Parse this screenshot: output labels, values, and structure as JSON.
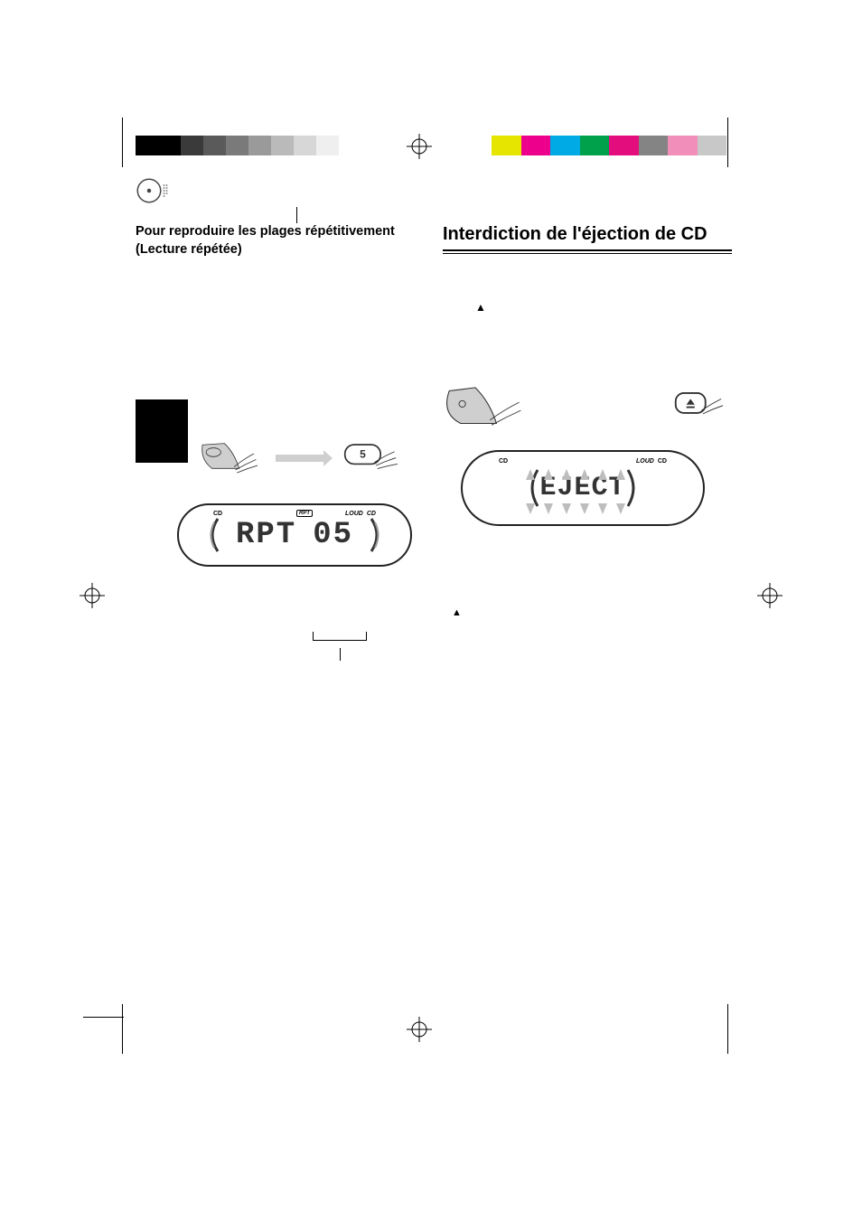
{
  "print_bars": {
    "grayscale": [
      "#000000",
      "#000000",
      "#3a3a3a",
      "#5a5a5a",
      "#7a7a7a",
      "#9a9a9a",
      "#bababa",
      "#d7d7d7",
      "#efefef",
      "#ffffff"
    ],
    "color": [
      "#e5e500",
      "#ec008c",
      "#00aae4",
      "#00a14b",
      "#e40d7e",
      "#848484",
      "#f18fba",
      "#c8c8c8"
    ]
  },
  "left": {
    "heading": "Pour reproduire les plages répétitivement (Lecture répétée)",
    "button_number": "5",
    "lcd": {
      "top_left": "CD",
      "top_center": "RPT",
      "top_right_1": "LOUD",
      "top_right_2": "CD",
      "main_left": "RPT",
      "main_right": "05"
    }
  },
  "right": {
    "heading": "Interdiction de l'éjection de CD",
    "eject_symbol": "▲",
    "lcd": {
      "top_left": "CD",
      "top_right_1": "LOUD",
      "top_right_2": "CD",
      "main": "EJECT"
    },
    "cancel_symbol": "▲"
  },
  "colors": {
    "page_bg": "#ffffff",
    "text": "#000000",
    "lcd_border": "#222222",
    "arrow_gray": "#cfcfcf",
    "triangle_gray": "#bdbdbd",
    "hand_bg": "#cfcfcf"
  }
}
